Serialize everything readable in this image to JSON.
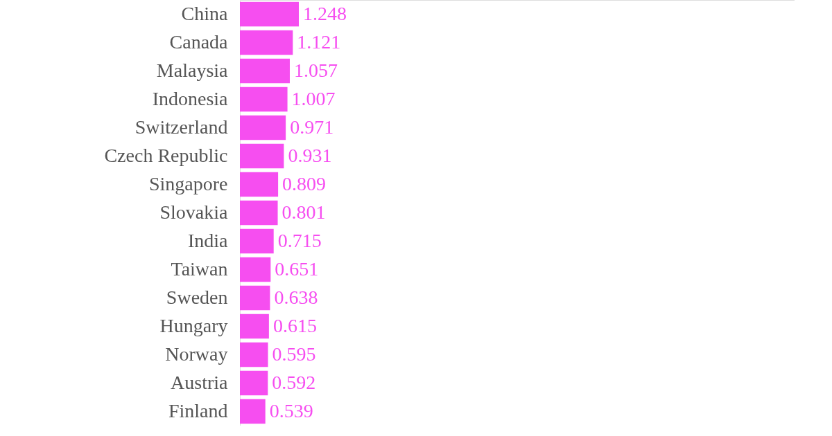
{
  "chart_data": {
    "type": "bar",
    "orientation": "horizontal",
    "categories": [
      "China",
      "Canada",
      "Malaysia",
      "Indonesia",
      "Switzerland",
      "Czech Republic",
      "Singapore",
      "Slovakia",
      "India",
      "Taiwan",
      "Sweden",
      "Hungary",
      "Norway",
      "Austria",
      "Finland"
    ],
    "values": [
      1.248,
      1.121,
      1.057,
      1.007,
      0.971,
      0.931,
      0.809,
      0.801,
      0.715,
      0.651,
      0.638,
      0.615,
      0.595,
      0.592,
      0.539
    ],
    "color": "#f64ef0",
    "data_labels": true
  }
}
